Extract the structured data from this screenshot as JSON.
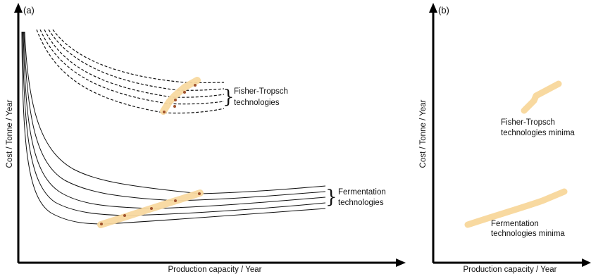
{
  "panel_a": {
    "label": "(a)",
    "xlabel": "Production capacity / Year",
    "ylabel": "Cost / Tonne / Year",
    "ft_label_line1": "Fisher-Tropsch",
    "ft_label_line2": "technologies",
    "ferm_label_line1": "Fermentation",
    "ferm_label_line2": "technologies"
  },
  "panel_b": {
    "label": "(b)",
    "xlabel": "Production capacity / Year",
    "ylabel": "Cost / Tonne / Year",
    "ft_label_line1": "Fisher-Tropsch",
    "ft_label_line2": "technologies minima",
    "ferm_label_line1": "Fermentation",
    "ferm_label_line2": "technologies minima"
  },
  "colors": {
    "axis": "#000000",
    "curve": "#111111",
    "minima_band": "#f8d9a0",
    "minima_point": "#a0522d"
  }
}
